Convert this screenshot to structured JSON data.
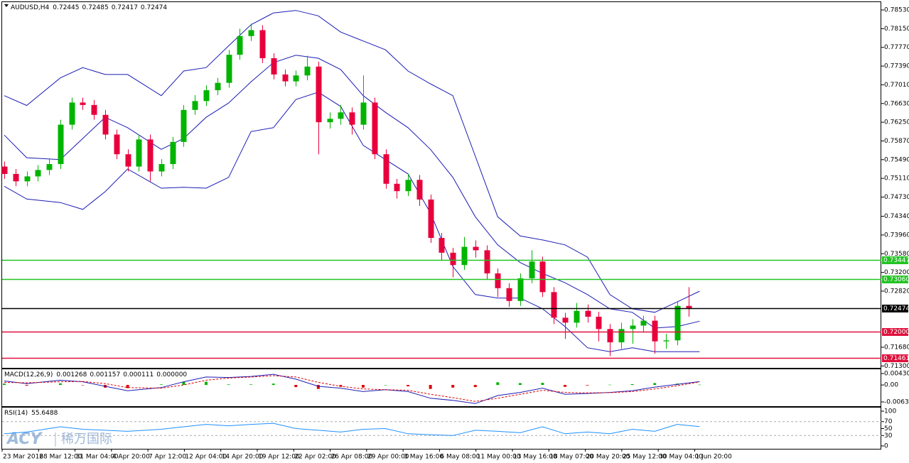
{
  "chart_data": [
    {
      "type": "candlestick",
      "title": "AUDUSD,H4",
      "header_values": [
        0.72445,
        0.72485,
        0.72417,
        0.72474
      ],
      "x": [
        0,
        1,
        2,
        3,
        4,
        5,
        6,
        7,
        8,
        9,
        10,
        11,
        12,
        13,
        14,
        15,
        16,
        17,
        18,
        19,
        20,
        21,
        22,
        23,
        24,
        25,
        26,
        27,
        28,
        29,
        30,
        31,
        32,
        33,
        34,
        35,
        36,
        37,
        38,
        39,
        40,
        41,
        42,
        43,
        44,
        45,
        46,
        47,
        48,
        49,
        50,
        51,
        52,
        53,
        54,
        55,
        56,
        57,
        58,
        59,
        60,
        61
      ],
      "open": [
        0.7535,
        0.752,
        0.7505,
        0.7515,
        0.7528,
        0.754,
        0.762,
        0.7665,
        0.766,
        0.764,
        0.76,
        0.756,
        0.7535,
        0.759,
        0.7525,
        0.754,
        0.7585,
        0.765,
        0.7668,
        0.769,
        0.7705,
        0.7762,
        0.78,
        0.7812,
        0.7755,
        0.7722,
        0.7708,
        0.772,
        0.7738,
        0.7625,
        0.7632,
        0.7645,
        0.762,
        0.7665,
        0.756,
        0.75,
        0.7485,
        0.7508,
        0.7468,
        0.739,
        0.736,
        0.7335,
        0.7372,
        0.7365,
        0.7318,
        0.7288,
        0.7262,
        0.7308,
        0.7342,
        0.728,
        0.7228,
        0.7218,
        0.7242,
        0.723,
        0.7205,
        0.7178,
        0.7205,
        0.7212,
        0.7222,
        0.718,
        0.7182,
        0.7252
      ],
      "high": [
        0.7545,
        0.753,
        0.7525,
        0.7538,
        0.755,
        0.763,
        0.7675,
        0.7675,
        0.767,
        0.765,
        0.761,
        0.757,
        0.76,
        0.76,
        0.755,
        0.7595,
        0.766,
        0.768,
        0.77,
        0.7715,
        0.7772,
        0.7815,
        0.7825,
        0.7822,
        0.7765,
        0.7732,
        0.773,
        0.776,
        0.7748,
        0.7645,
        0.766,
        0.7655,
        0.772,
        0.7675,
        0.757,
        0.751,
        0.752,
        0.7518,
        0.7478,
        0.74,
        0.737,
        0.7392,
        0.7385,
        0.7375,
        0.7328,
        0.7298,
        0.7318,
        0.7365,
        0.7352,
        0.729,
        0.7238,
        0.7258,
        0.7255,
        0.724,
        0.7215,
        0.7218,
        0.7225,
        0.7232,
        0.7232,
        0.7195,
        0.7262,
        0.729
      ],
      "low": [
        0.751,
        0.7495,
        0.7495,
        0.7505,
        0.7518,
        0.753,
        0.761,
        0.765,
        0.763,
        0.759,
        0.755,
        0.7525,
        0.7525,
        0.7505,
        0.7515,
        0.753,
        0.7575,
        0.764,
        0.7658,
        0.768,
        0.7695,
        0.7752,
        0.779,
        0.7745,
        0.7712,
        0.7698,
        0.7698,
        0.771,
        0.756,
        0.7612,
        0.762,
        0.76,
        0.761,
        0.755,
        0.749,
        0.747,
        0.7475,
        0.7455,
        0.738,
        0.7345,
        0.731,
        0.7325,
        0.735,
        0.7305,
        0.727,
        0.725,
        0.7252,
        0.7298,
        0.727,
        0.7215,
        0.7185,
        0.7208,
        0.7218,
        0.718,
        0.715,
        0.7165,
        0.7175,
        0.7198,
        0.7155,
        0.7165,
        0.7172,
        0.723
      ],
      "close": [
        0.752,
        0.7505,
        0.7515,
        0.7528,
        0.754,
        0.762,
        0.7665,
        0.766,
        0.764,
        0.76,
        0.756,
        0.7535,
        0.759,
        0.7525,
        0.754,
        0.7585,
        0.765,
        0.7668,
        0.769,
        0.7705,
        0.7762,
        0.78,
        0.7812,
        0.7755,
        0.7722,
        0.7708,
        0.772,
        0.7738,
        0.7625,
        0.7632,
        0.7645,
        0.762,
        0.7665,
        0.756,
        0.75,
        0.7485,
        0.7508,
        0.7468,
        0.739,
        0.736,
        0.7335,
        0.7372,
        0.7365,
        0.7318,
        0.7288,
        0.7262,
        0.7308,
        0.7342,
        0.728,
        0.7228,
        0.7218,
        0.7242,
        0.723,
        0.7205,
        0.7178,
        0.7205,
        0.7212,
        0.7222,
        0.718,
        0.7182,
        0.7252,
        0.7247
      ],
      "up_color": "#00b400",
      "down_color": "#e8003c",
      "bands_x": [
        0,
        2,
        5,
        7,
        9,
        11,
        14,
        16,
        18,
        20,
        22,
        24,
        26,
        28,
        30,
        32,
        34,
        36,
        38,
        40,
        42,
        44,
        46,
        48,
        50,
        52,
        54,
        56,
        58,
        60,
        62
      ],
      "bands": [
        [
          0.7679,
          0.7659,
          0.7715,
          0.7736,
          0.7722,
          0.7722,
          0.7679,
          0.7729,
          0.7736,
          0.778,
          0.7823,
          0.7847,
          0.7852,
          0.7841,
          0.7808,
          0.779,
          0.7772,
          0.7729,
          0.7703,
          0.7679,
          0.7556,
          0.7433,
          0.7394,
          0.7386,
          0.7376,
          0.7351,
          0.7275,
          0.7246,
          0.7239,
          0.726,
          0.7282
        ],
        [
          0.7599,
          0.7553,
          0.7549,
          0.7592,
          0.7635,
          0.7614,
          0.757,
          0.7592,
          0.7635,
          0.7664,
          0.7707,
          0.7746,
          0.7761,
          0.7755,
          0.7732,
          0.7679,
          0.7645,
          0.7614,
          0.757,
          0.7513,
          0.7433,
          0.7376,
          0.734,
          0.7318,
          0.7299,
          0.7275,
          0.7246,
          0.7239,
          0.7207,
          0.721,
          0.7221
        ],
        [
          0.7495,
          0.7469,
          0.7462,
          0.7448,
          0.7484,
          0.753,
          0.7491,
          0.7493,
          0.7491,
          0.7513,
          0.7606,
          0.7614,
          0.7671,
          0.7686,
          0.7657,
          0.7578,
          0.7549,
          0.752,
          0.7441,
          0.7332,
          0.7275,
          0.7268,
          0.7268,
          0.7246,
          0.721,
          0.7167,
          0.7159,
          0.7167,
          0.7159,
          0.7159,
          0.7159
        ]
      ],
      "band_color": "#1c1cb4",
      "levels": [
        {
          "value": 0.73447,
          "color": "#22c322"
        },
        {
          "value": 0.7306,
          "label": "0.73060",
          "color": "#22c322"
        },
        {
          "value": 0.72474,
          "color": "#000000"
        },
        {
          "value": 0.72,
          "label": "0.72000",
          "color": "#e0103c"
        },
        {
          "value": 0.71461,
          "color": "#e0103c"
        }
      ],
      "xlim": [
        -0.19,
        78.2
      ],
      "ylim": [
        0.71262,
        0.78689
      ],
      "yticks": [
        {
          "value": 0.7853,
          "label": "0.78530"
        },
        {
          "value": 0.7815,
          "label": "0.78150"
        },
        {
          "value": 0.7777,
          "label": "0.77770"
        },
        {
          "value": 0.7739,
          "label": "0.77390"
        },
        {
          "value": 0.7701,
          "label": "0.77010"
        },
        {
          "value": 0.7663,
          "label": "0.76630"
        },
        {
          "value": 0.7625,
          "label": "0.76250"
        },
        {
          "value": 0.7587,
          "label": "0.75870"
        },
        {
          "value": 0.7549,
          "label": "0.75490"
        },
        {
          "value": 0.7511,
          "label": "0.75110"
        },
        {
          "value": 0.7473,
          "label": "0.74730"
        },
        {
          "value": 0.7434,
          "label": "0.74340"
        },
        {
          "value": 0.7396,
          "label": "0.73960"
        },
        {
          "value": 0.7358,
          "label": "0.73580"
        },
        {
          "value": 0.732,
          "label": "0.73200"
        },
        {
          "value": 0.7282,
          "label": "0.72820"
        },
        {
          "value": 0.7168,
          "label": "0.71680"
        },
        {
          "value": 0.713,
          "label": "0.71300"
        }
      ],
      "xticks": [
        {
          "value": -0.19,
          "label": "23 Mar 2016"
        },
        {
          "value": 3.06,
          "label": "28 Mar 12:00"
        },
        {
          "value": 6.31,
          "label": "31 Mar 04:00"
        },
        {
          "value": 9.56,
          "label": "4 Apr 20:00"
        },
        {
          "value": 12.81,
          "label": "7 Apr 12:00"
        },
        {
          "value": 16.06,
          "label": "12 Apr 04:00"
        },
        {
          "value": 19.31,
          "label": "14 Apr 20:00"
        },
        {
          "value": 22.56,
          "label": "19 Apr 12:00"
        },
        {
          "value": 25.81,
          "label": "22 Apr 02:00"
        },
        {
          "value": 29.06,
          "label": "26 Apr 08:00"
        },
        {
          "value": 32.31,
          "label": "29 Apr 00:00"
        },
        {
          "value": 35.56,
          "label": "3 May 16:00"
        },
        {
          "value": 38.81,
          "label": "6 May 08:00"
        },
        {
          "value": 42.06,
          "label": "11 May 00:00"
        },
        {
          "value": 45.31,
          "label": "13 May 16:00"
        },
        {
          "value": 48.56,
          "label": "18 May 07:00"
        },
        {
          "value": 51.81,
          "label": "20 May 20:00"
        },
        {
          "value": 55.06,
          "label": "25 May 12:00"
        },
        {
          "value": 58.31,
          "label": "30 May 04:00"
        },
        {
          "value": 61.56,
          "label": "1 Jun 20:00"
        }
      ],
      "watermark": "ACY",
      "watermark_cn": "稀万国际"
    },
    {
      "type": "macd",
      "title": "MACD(12,26,9)",
      "header_values": [
        0.001268,
        0.001157,
        0.000111,
        {
          "value": 0,
          "label": "0.000000"
        }
      ],
      "x": [
        0,
        2,
        5,
        7,
        9,
        11,
        14,
        16,
        18,
        20,
        22,
        24,
        26,
        28,
        30,
        32,
        34,
        36,
        38,
        40,
        42,
        44,
        46,
        48,
        50,
        52,
        54,
        56,
        58,
        60,
        62
      ],
      "xlim": [
        -0.19,
        78.2
      ],
      "ylim": [
        -0.008,
        0.00591
      ],
      "yticks": [
        0.004303,
        {
          "value": 0,
          "label": "0.00"
        },
        -0.006393
      ],
      "series": [
        {
          "color": "#1c1cb4",
          "values": [
            0.0015,
            0.0005,
            0.0018,
            0.0012,
            -0.0005,
            -0.0022,
            -0.001,
            0.0012,
            0.003,
            0.0028,
            0.0032,
            0.004,
            0.0022,
            -0.0005,
            -0.0012,
            -0.0025,
            -0.0018,
            -0.0025,
            -0.005,
            -0.0058,
            -0.007,
            -0.004,
            -0.0028,
            -0.0012,
            -0.0035,
            -0.0032,
            -0.0028,
            -0.0022,
            -0.0008,
            0.0002,
            0.001268
          ]
        },
        {
          "color": "#e00000",
          "dash": true,
          "values": [
            0.001,
            0.0008,
            0.0012,
            0.0013,
            0.0005,
            -0.001,
            -0.0012,
            0,
            0.0018,
            0.0026,
            0.003,
            0.0035,
            0.003,
            0.001,
            -0.0005,
            -0.0015,
            -0.0018,
            -0.002,
            -0.0035,
            -0.0048,
            -0.0062,
            -0.005,
            -0.0035,
            -0.002,
            -0.0028,
            -0.003,
            -0.0029,
            -0.0025,
            -0.0015,
            -0.0003,
            0.001157
          ]
        }
      ],
      "histogram": {
        "up_color": "#00b400",
        "down_color": "#e00000",
        "values": [
          0.0005,
          -0.0003,
          0.0006,
          -0.0001,
          -0.001,
          -0.0012,
          0.0002,
          0.0012,
          0.0012,
          0.0002,
          0.0002,
          0.0005,
          -0.0008,
          -0.0015,
          -0.0007,
          -0.001,
          0,
          -0.0005,
          -0.0015,
          -0.001,
          -0.0008,
          0.001,
          0.0007,
          0.0008,
          -0.0007,
          -0.0002,
          0.0001,
          0.0003,
          0.0007,
          0.0005,
          0.000111
        ]
      }
    },
    {
      "type": "line",
      "title": "RSI(14)",
      "header_values": [
        55.6488
      ],
      "x": [
        0,
        2,
        5,
        7,
        9,
        11,
        14,
        16,
        18,
        20,
        22,
        24,
        26,
        28,
        30,
        32,
        34,
        36,
        38,
        40,
        42,
        44,
        46,
        48,
        50,
        52,
        54,
        56,
        58,
        60,
        62
      ],
      "xlim": [
        -0.19,
        78.2
      ],
      "ylim": [
        -8.2,
        110.2
      ],
      "yticks": [
        100,
        70,
        50,
        30,
        0
      ],
      "levels": [
        70,
        30
      ],
      "series": [
        {
          "color": "#1e90ff",
          "values": [
            35,
            40,
            55,
            48,
            45,
            42,
            48,
            55,
            62,
            58,
            62,
            65,
            50,
            45,
            40,
            48,
            50,
            35,
            32,
            30,
            45,
            42,
            38,
            55,
            35,
            40,
            35,
            48,
            42,
            62,
            55.6488
          ]
        }
      ]
    }
  ]
}
